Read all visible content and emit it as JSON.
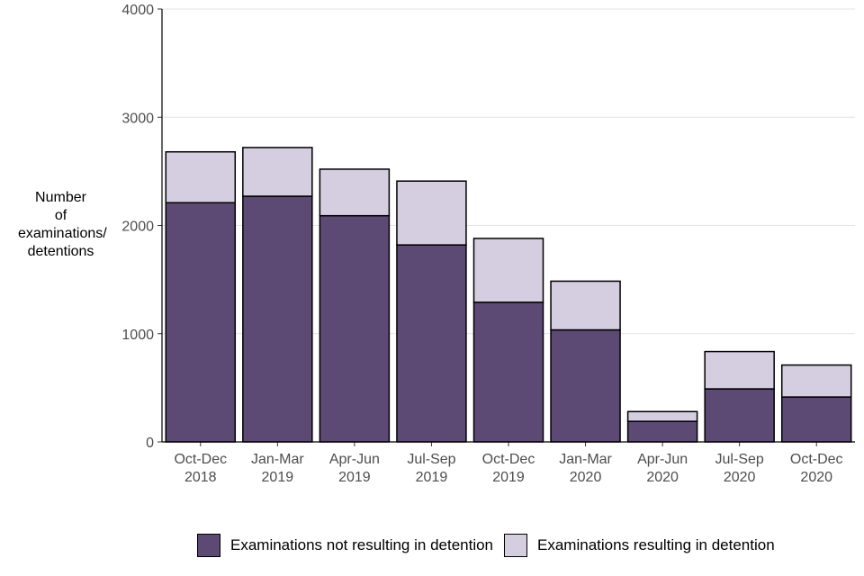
{
  "chart_data": {
    "type": "bar",
    "stacked": true,
    "title": "",
    "xlabel": "",
    "ylabel_lines": [
      "Number",
      "of",
      "examinations/",
      "detentions"
    ],
    "ylim": [
      0,
      4000
    ],
    "yticks": [
      0,
      1000,
      2000,
      3000,
      4000
    ],
    "grid": "horizontal",
    "categories": [
      [
        "Oct-Dec",
        "2018"
      ],
      [
        "Jan-Mar",
        "2019"
      ],
      [
        "Apr-Jun",
        "2019"
      ],
      [
        "Jul-Sep",
        "2019"
      ],
      [
        "Oct-Dec",
        "2019"
      ],
      [
        "Jan-Mar",
        "2020"
      ],
      [
        "Apr-Jun",
        "2020"
      ],
      [
        "Jul-Sep",
        "2020"
      ],
      [
        "Oct-Dec",
        "2020"
      ]
    ],
    "series": [
      {
        "name": "Examinations not resulting in detention",
        "color": "#5c4a75",
        "values": [
          2210,
          2270,
          2090,
          1820,
          1290,
          1035,
          190,
          490,
          415
        ]
      },
      {
        "name": "Examinations resulting in detention",
        "color": "#d5cde0",
        "values": [
          470,
          450,
          430,
          590,
          590,
          450,
          90,
          345,
          295
        ]
      }
    ],
    "legend_position": "bottom"
  }
}
